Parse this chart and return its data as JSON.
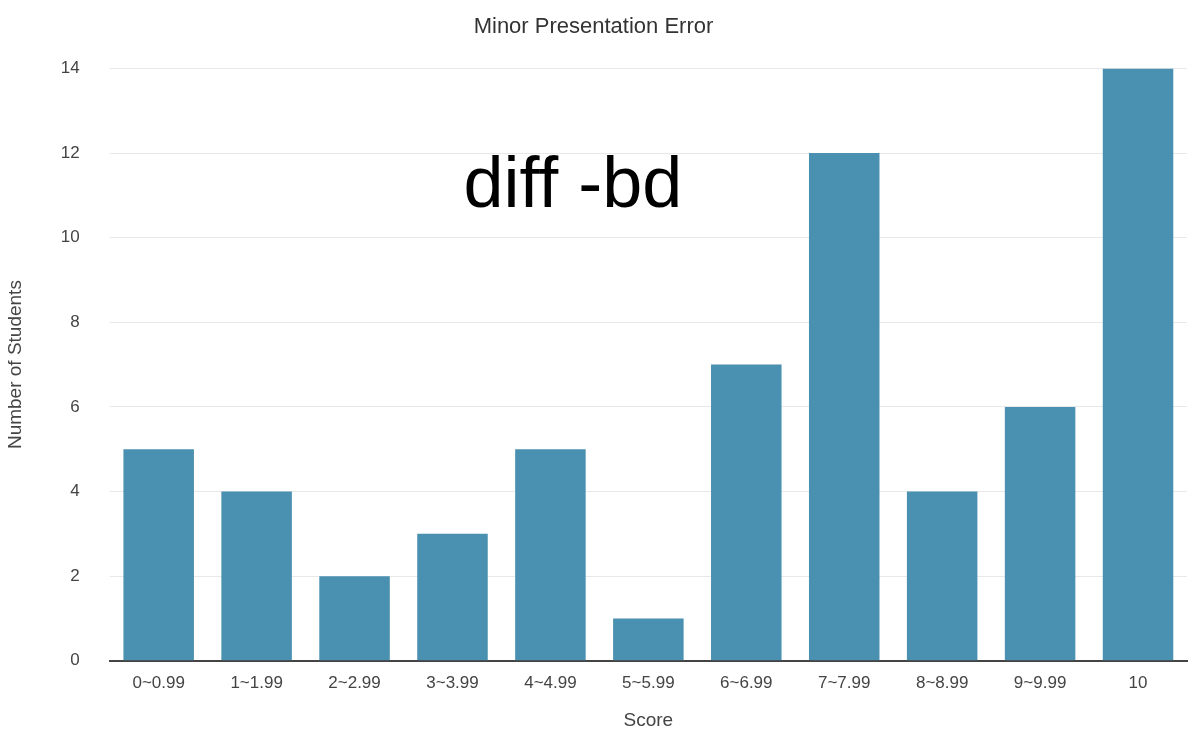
{
  "chart_data": {
    "type": "bar",
    "title": "Minor Presentation Error",
    "xlabel": "Score",
    "ylabel": "Number of Students",
    "categories": [
      "0~0.99",
      "1~1.99",
      "2~2.99",
      "3~3.99",
      "4~4.99",
      "5~5.99",
      "6~6.99",
      "7~7.99",
      "8~8.99",
      "9~9.99",
      "10"
    ],
    "values": [
      5,
      4,
      2,
      3,
      5,
      1,
      7,
      12,
      4,
      6,
      14
    ],
    "color": "#4a90b0",
    "ylim": [
      0,
      14
    ],
    "yticks": [
      0,
      2,
      4,
      6,
      8,
      10,
      12,
      14
    ],
    "grid": "y",
    "legend": false,
    "annotations": [
      "diff -bd"
    ]
  }
}
